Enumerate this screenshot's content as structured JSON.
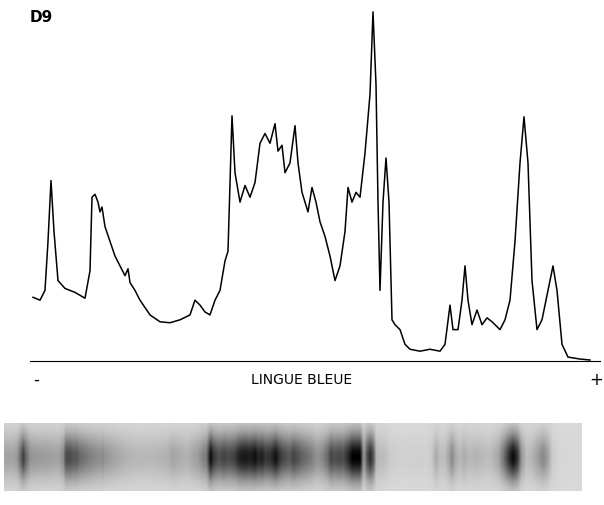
{
  "chart_data": {
    "type": "line",
    "title": "D9",
    "xlabel": "LINGUE BLEUE",
    "pole_labels": [
      "-",
      "+"
    ],
    "color": "#000000",
    "tick_labels": false,
    "grid": false,
    "xlim": [
      30,
      600
    ],
    "ylim": [
      0,
      362
    ],
    "x": [
      33,
      40,
      45,
      48,
      51,
      54,
      58,
      65,
      75,
      85,
      90,
      92,
      95,
      98,
      100,
      102,
      105,
      110,
      115,
      120,
      125,
      128,
      130,
      135,
      140,
      150,
      160,
      170,
      180,
      190,
      195,
      200,
      205,
      210,
      215,
      220,
      225,
      228,
      232,
      235,
      240,
      245,
      250,
      255,
      260,
      265,
      270,
      275,
      278,
      282,
      285,
      290,
      295,
      298,
      302,
      308,
      312,
      316,
      320,
      325,
      330,
      335,
      340,
      345,
      348,
      352,
      356,
      360,
      365,
      370,
      373,
      376,
      378,
      380,
      383,
      386,
      389,
      392,
      395,
      400,
      405,
      410,
      420,
      430,
      440,
      445,
      450,
      453,
      458,
      462,
      465,
      468,
      472,
      477,
      482,
      487,
      492,
      500,
      505,
      510,
      515,
      520,
      524,
      528,
      532,
      537,
      542,
      548,
      553,
      557,
      562,
      568,
      580,
      590
    ],
    "values": [
      65,
      62,
      72,
      122,
      184,
      132,
      82,
      74,
      70,
      64,
      92,
      167,
      170,
      162,
      152,
      157,
      137,
      122,
      107,
      97,
      87,
      94,
      80,
      72,
      62,
      47,
      40,
      39,
      42,
      47,
      62,
      57,
      50,
      47,
      62,
      72,
      102,
      112,
      250,
      192,
      162,
      179,
      167,
      182,
      222,
      232,
      222,
      242,
      214,
      220,
      192,
      202,
      240,
      202,
      172,
      152,
      177,
      162,
      142,
      127,
      107,
      82,
      97,
      132,
      177,
      162,
      172,
      167,
      212,
      272,
      356,
      282,
      162,
      72,
      162,
      207,
      162,
      42,
      37,
      32,
      17,
      12,
      10,
      12,
      10,
      17,
      57,
      32,
      32,
      62,
      97,
      62,
      37,
      52,
      37,
      44,
      40,
      32,
      42,
      62,
      122,
      202,
      249,
      202,
      82,
      32,
      42,
      72,
      97,
      72,
      17,
      4,
      2,
      1
    ]
  }
}
